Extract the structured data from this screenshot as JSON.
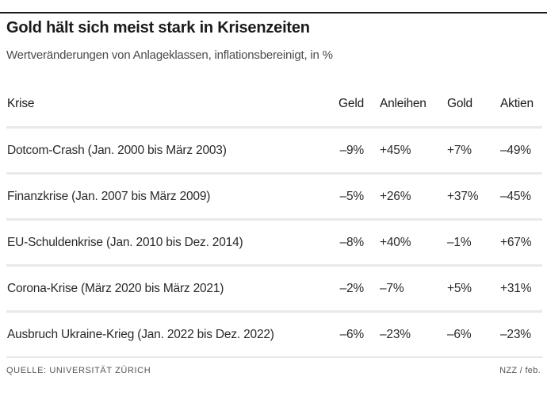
{
  "chart_data": {
    "type": "table",
    "title": "Gold hält sich meist stark in Krisenzeiten",
    "subtitle": "Wertveränderungen von Anlageklassen, inflationsbereinigt, in %",
    "columns": [
      "Krise",
      "Geld",
      "Anleihen",
      "Gold",
      "Aktien"
    ],
    "rows": [
      {
        "krise": "Dotcom-Crash (Jan. 2000 bis März 2003)",
        "geld": "–9%",
        "anleihen": "+45%",
        "gold": "+7%",
        "aktien": "–49%"
      },
      {
        "krise": "Finanzkrise (Jan. 2007 bis März 2009)",
        "geld": "–5%",
        "anleihen": "+26%",
        "gold": "+37%",
        "aktien": "–45%"
      },
      {
        "krise": "EU-Schuldenkrise (Jan. 2010 bis Dez. 2014)",
        "geld": "–8%",
        "anleihen": "+40%",
        "gold": "–1%",
        "aktien": "+67%"
      },
      {
        "krise": "Corona-Krise (März 2020 bis März 2021)",
        "geld": "–2%",
        "anleihen": "–7%",
        "gold": "+5%",
        "aktien": "+31%"
      },
      {
        "krise": "Ausbruch Ukraine-Krieg (Jan. 2022 bis Dez. 2022)",
        "geld": "–6%",
        "anleihen": "–23%",
        "gold": "–6%",
        "aktien": "–23%"
      }
    ],
    "source": "QUELLE: UNIVERSITÄT ZÜRICH",
    "credit": "NZZ / feb."
  }
}
